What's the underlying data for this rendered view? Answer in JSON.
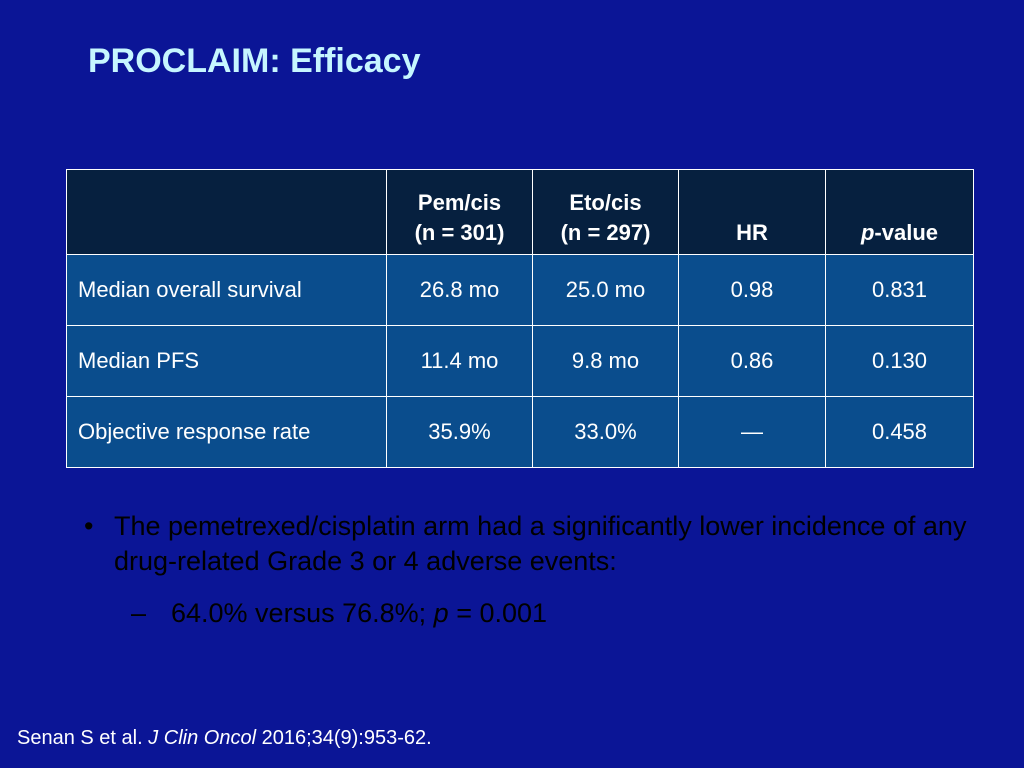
{
  "slide": {
    "title": "PROCLAIM: Efficacy"
  },
  "table": {
    "headers": {
      "col1_line1": "Pem/cis",
      "col1_line2": "(n = 301)",
      "col2_line1": "Eto/cis",
      "col2_line2": "(n = 297)",
      "col3": "HR",
      "col4_italic": "p",
      "col4_rest": "-value"
    },
    "rows": [
      {
        "label": "Median overall survival",
        "pem": "26.8 mo",
        "eto": "25.0 mo",
        "hr": "0.98",
        "p": "0.831"
      },
      {
        "label": "Median PFS",
        "pem": "11.4 mo",
        "eto": "9.8 mo",
        "hr": "0.86",
        "p": "0.130"
      },
      {
        "label": "Objective response rate",
        "pem": "35.9%",
        "eto": "33.0%",
        "hr": "—",
        "p": "0.458"
      }
    ]
  },
  "bullets": {
    "marker": "•",
    "main": "The pemetrexed/cisplatin arm had a significantly lower incidence of any drug-related Grade 3 or 4 adverse events:",
    "sub_marker": "–",
    "sub_before": "64.0% versus 76.8%; ",
    "sub_italic": "p",
    "sub_after": " = 0.001"
  },
  "citation": {
    "authors": "Senan S et al. ",
    "journal": "J Clin Oncol",
    "details": " 2016;34(9):953-62."
  }
}
